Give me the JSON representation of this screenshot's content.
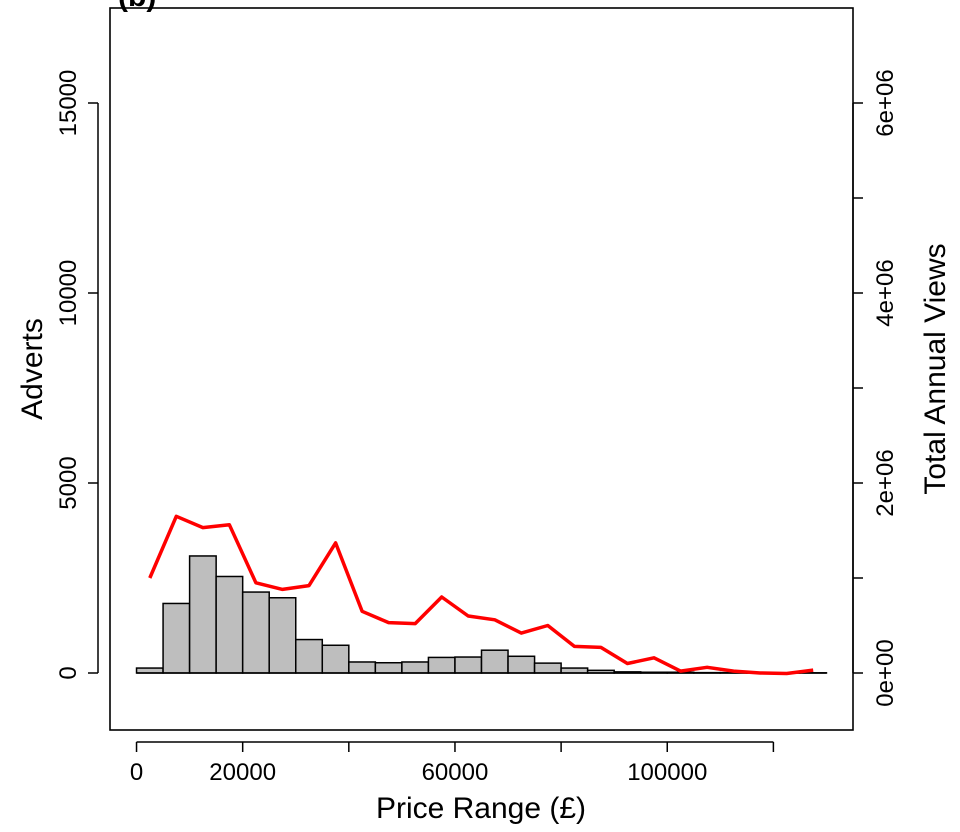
{
  "chart_data": {
    "type": "bar",
    "panel_label": "(b)",
    "xlabel": "Price Range (£)",
    "ylabel": "Adverts",
    "y2label": "Total Annual Views",
    "xlim": [
      -5000,
      135000
    ],
    "ylim": [
      -1500,
      17500
    ],
    "y2lim": [
      -600000,
      7000000
    ],
    "x_ticks": [
      0,
      20000,
      40000,
      60000,
      80000,
      100000,
      120000
    ],
    "x_tick_labels": [
      "0",
      "20000",
      "",
      "60000",
      "",
      "100000",
      ""
    ],
    "y_ticks": [
      0,
      5000,
      10000,
      15000
    ],
    "y_tick_labels": [
      "0",
      "5000",
      "10000",
      "15000"
    ],
    "y2_ticks": [
      0,
      1000000,
      2000000,
      3000000,
      4000000,
      5000000,
      6000000
    ],
    "y2_tick_labels": [
      "0e+00",
      "",
      "2e+06",
      "",
      "4e+06",
      "",
      "6e+06"
    ],
    "bin_width": 5000,
    "bins_start": [
      0,
      5000,
      10000,
      15000,
      20000,
      25000,
      30000,
      35000,
      40000,
      45000,
      50000,
      55000,
      60000,
      65000,
      70000,
      75000,
      80000,
      85000,
      90000,
      95000,
      100000,
      105000,
      110000,
      115000,
      120000,
      125000
    ],
    "adverts": [
      130,
      1830,
      3080,
      2540,
      2130,
      1980,
      880,
      730,
      290,
      270,
      290,
      410,
      420,
      600,
      440,
      260,
      130,
      70,
      30,
      20,
      20,
      10,
      10,
      5,
      5,
      5
    ],
    "views_x": [
      2500,
      7500,
      12500,
      17500,
      22500,
      27500,
      32500,
      37500,
      42500,
      47500,
      52500,
      57500,
      62500,
      67500,
      72500,
      77500,
      82500,
      87500,
      92500,
      97500,
      102500,
      107500,
      112500,
      117500,
      122500,
      127500
    ],
    "views": [
      1000000,
      1650000,
      1530000,
      1560000,
      950000,
      880000,
      920000,
      1370000,
      650000,
      530000,
      520000,
      800000,
      600000,
      560000,
      420000,
      500000,
      280000,
      270000,
      100000,
      160000,
      20000,
      60000,
      20000,
      0,
      -5000,
      30000
    ],
    "bar_color": "#bebebe",
    "line_color": "#ff0000"
  }
}
